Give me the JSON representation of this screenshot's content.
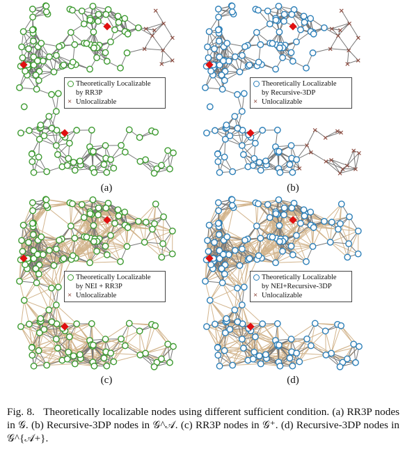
{
  "panels": [
    {
      "id": "a",
      "label": "(a)",
      "legend_line1": "Theoretically Localizable",
      "legend_line2": "by RR3P",
      "legend_unloc": "Unlocalizable",
      "node_color": "#3c9a2f",
      "extra_edges": false,
      "unloc_mode": "right"
    },
    {
      "id": "b",
      "label": "(b)",
      "legend_line1": "Theoretically Localizable",
      "legend_line2": "by Recursive-3DP",
      "legend_unloc": "Unlocalizable",
      "node_color": "#2c7fb8",
      "extra_edges": false,
      "unloc_mode": "right-bottom"
    },
    {
      "id": "c",
      "label": "(c)",
      "legend_line1": "Theoretically Localizable",
      "legend_line2": "by NEI + RR3P",
      "legend_unloc": "Unlocalizable",
      "node_color": "#3c9a2f",
      "extra_edges": true,
      "unloc_mode": "one"
    },
    {
      "id": "d",
      "label": "(d)",
      "legend_line1": "Theoretically Localizable",
      "legend_line2": "by NEI+Recursive-3DP",
      "legend_unloc": "Unlocalizable",
      "node_color": "#2c7fb8",
      "extra_edges": true,
      "unloc_mode": "one"
    }
  ],
  "colors": {
    "edge": "#777777",
    "extra_edge": "#d2b48c",
    "unlocalizable": "#8c4a3e",
    "anchor": "#e01010"
  },
  "caption": {
    "fig": "Fig. 8.",
    "text": "Theoretically localizable nodes using different sufficient condition. (a) RR3P nodes in 𝒢. (b) Recursive-3DP nodes in 𝒢^𝒜. (c) RR3P nodes in 𝒢⁺. (d) Recursive-3DP nodes in 𝒢^{𝒜+}."
  }
}
